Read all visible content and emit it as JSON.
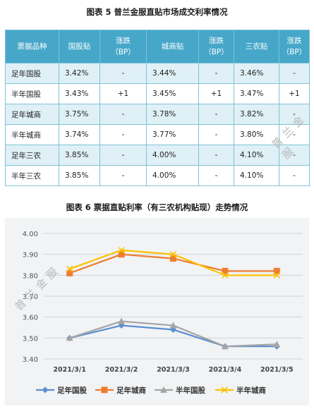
{
  "table_title": "图表 5  普兰金服直贴市场成交利率情况",
  "table": {
    "headers": [
      "票据品种",
      "国股贴",
      "涨跌\n（BP）",
      "城商贴",
      "涨跌\n（BP）",
      "三农贴",
      "涨跌\n（BP）"
    ],
    "rows": [
      [
        "足年国股",
        "3.42%",
        "-",
        "3.44%",
        "-",
        "3.46%",
        "-"
      ],
      [
        "半年国股",
        "3.43%",
        "+1",
        "3.45%",
        "+1",
        "3.47%",
        "+1"
      ],
      [
        "足年城商",
        "3.75%",
        "-",
        "3.78%",
        "-",
        "3.82%",
        "-"
      ],
      [
        "半年城商",
        "3.74%",
        "-",
        "3.77%",
        "-",
        "3.80%",
        "-"
      ],
      [
        "足年三农",
        "3.85%",
        "-",
        "4.00%",
        "-",
        "4.10%",
        "-"
      ],
      [
        "半年三农",
        "3.85%",
        "-",
        "4.00%",
        "-",
        "4.10%",
        "-"
      ]
    ]
  },
  "watermark": "普兰金服",
  "chart_title": "图表 6  票据直贴利率（有三农机构贴现）走势情况",
  "chart_data": {
    "type": "line",
    "categories": [
      "2021/3/1",
      "2021/3/2",
      "2021/3/3",
      "2021/3/4",
      "2021/3/5"
    ],
    "yticks": [
      "3.40",
      "3.50",
      "3.60",
      "3.70",
      "3.80",
      "3.90",
      "4.00"
    ],
    "ylim": [
      3.4,
      4.0
    ],
    "grid": true,
    "legend_position": "bottom",
    "series": [
      {
        "name": "足年国股",
        "values": [
          3.5,
          3.56,
          3.54,
          3.46,
          3.46
        ],
        "color": "#5b8fd0",
        "marker": "diamond"
      },
      {
        "name": "足年城商",
        "values": [
          3.81,
          3.9,
          3.88,
          3.82,
          3.82
        ],
        "color": "#ed7d31",
        "marker": "square"
      },
      {
        "name": "半年国股",
        "values": [
          3.5,
          3.58,
          3.56,
          3.46,
          3.47
        ],
        "color": "#a5a5a5",
        "marker": "triangle"
      },
      {
        "name": "半年城商",
        "values": [
          3.83,
          3.92,
          3.9,
          3.8,
          3.8
        ],
        "color": "#ffc000",
        "marker": "x"
      }
    ]
  }
}
